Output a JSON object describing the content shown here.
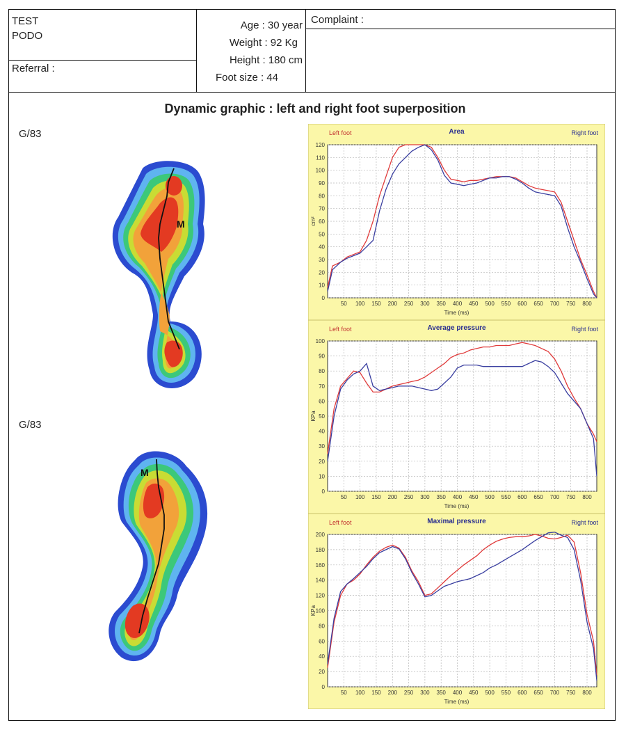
{
  "header": {
    "patient_line1": "TEST",
    "patient_line2": "PODO",
    "referral_label": "Referral :",
    "age": "Age : 30 year",
    "weight": "Weight : 92 Kg",
    "height": "Height : 180 cm",
    "foot_size": "Foot size : 44",
    "complaint_label": "Complaint :"
  },
  "main": {
    "title": "Dynamic graphic : left and right foot superposition",
    "foot_top_label": "G/83",
    "foot_bottom_label": "G/83",
    "foot_marker": "M"
  },
  "colors": {
    "left_foot": "#e03b3b",
    "right_foot": "#3a3fa0",
    "panel_bg": "#fbf7a8",
    "plot_bg": "#ffffff",
    "grid": "#b8b8b8"
  },
  "chart_data": [
    {
      "type": "line",
      "title": "Area",
      "left_label": "Left foot",
      "right_label": "Right foot",
      "xlabel": "Time (ms)",
      "ylabel": "cm²",
      "xlim": [
        0,
        830
      ],
      "ylim": [
        0,
        120
      ],
      "xticks": [
        50,
        100,
        150,
        200,
        250,
        300,
        350,
        400,
        450,
        500,
        550,
        600,
        650,
        700,
        750,
        800
      ],
      "yticks": [
        0,
        10,
        20,
        30,
        40,
        50,
        60,
        70,
        80,
        90,
        100,
        110,
        120
      ],
      "series": [
        {
          "color_key": "left_foot",
          "x": [
            0,
            15,
            40,
            60,
            80,
            100,
            120,
            140,
            160,
            180,
            200,
            220,
            240,
            260,
            280,
            300,
            320,
            340,
            360,
            380,
            400,
            420,
            440,
            460,
            480,
            500,
            520,
            540,
            560,
            580,
            600,
            620,
            640,
            660,
            680,
            700,
            720,
            740,
            760,
            780,
            800,
            820,
            830
          ],
          "y": [
            8,
            25,
            28,
            32,
            34,
            36,
            45,
            60,
            80,
            95,
            110,
            118,
            120,
            120,
            120,
            120,
            118,
            110,
            100,
            93,
            92,
            91,
            92,
            92,
            93,
            94,
            95,
            95,
            95,
            94,
            91,
            88,
            86,
            85,
            84,
            83,
            75,
            60,
            45,
            30,
            18,
            5,
            0
          ]
        },
        {
          "color_key": "right_foot",
          "x": [
            0,
            15,
            40,
            60,
            80,
            100,
            120,
            140,
            160,
            180,
            200,
            220,
            240,
            260,
            280,
            300,
            320,
            340,
            360,
            380,
            400,
            420,
            440,
            460,
            480,
            500,
            520,
            540,
            560,
            580,
            600,
            620,
            640,
            660,
            680,
            700,
            720,
            740,
            760,
            780,
            800,
            820,
            830
          ],
          "y": [
            5,
            22,
            28,
            31,
            33,
            35,
            40,
            45,
            68,
            85,
            97,
            105,
            110,
            115,
            118,
            120,
            116,
            108,
            96,
            90,
            89,
            88,
            89,
            90,
            92,
            94,
            94,
            95,
            95,
            93,
            90,
            86,
            83,
            82,
            81,
            80,
            72,
            55,
            40,
            28,
            15,
            3,
            0
          ]
        }
      ]
    },
    {
      "type": "line",
      "title": "Average pressure",
      "left_label": "Left foot",
      "right_label": "Right foot",
      "xlabel": "Time (ms)",
      "ylabel": "KPa",
      "xlim": [
        0,
        830
      ],
      "ylim": [
        0,
        100
      ],
      "xticks": [
        50,
        100,
        150,
        200,
        250,
        300,
        350,
        400,
        450,
        500,
        550,
        600,
        650,
        700,
        750,
        800
      ],
      "yticks": [
        0,
        10,
        20,
        30,
        40,
        50,
        60,
        70,
        80,
        90,
        100
      ],
      "series": [
        {
          "color_key": "left_foot",
          "x": [
            0,
            20,
            40,
            60,
            80,
            100,
            120,
            140,
            160,
            180,
            200,
            220,
            240,
            260,
            280,
            300,
            320,
            340,
            360,
            380,
            400,
            420,
            440,
            460,
            480,
            500,
            520,
            540,
            560,
            580,
            600,
            620,
            640,
            660,
            680,
            700,
            720,
            740,
            760,
            780,
            800,
            820,
            830
          ],
          "y": [
            25,
            55,
            70,
            75,
            80,
            79,
            72,
            66,
            66,
            68,
            70,
            71,
            72,
            73,
            74,
            76,
            79,
            82,
            85,
            89,
            91,
            92,
            94,
            95,
            96,
            96,
            97,
            97,
            97,
            98,
            99,
            98,
            97,
            95,
            93,
            88,
            80,
            70,
            62,
            55,
            45,
            38,
            33
          ]
        },
        {
          "color_key": "right_foot",
          "x": [
            0,
            20,
            40,
            60,
            80,
            100,
            120,
            140,
            160,
            180,
            200,
            220,
            240,
            260,
            280,
            300,
            320,
            340,
            360,
            380,
            400,
            420,
            440,
            460,
            480,
            500,
            520,
            540,
            560,
            580,
            600,
            620,
            640,
            660,
            680,
            700,
            720,
            740,
            760,
            780,
            800,
            820,
            830
          ],
          "y": [
            20,
            50,
            68,
            74,
            78,
            80,
            85,
            70,
            67,
            68,
            69,
            70,
            70,
            70,
            69,
            68,
            67,
            68,
            72,
            76,
            82,
            84,
            84,
            84,
            83,
            83,
            83,
            83,
            83,
            83,
            83,
            85,
            87,
            86,
            83,
            79,
            72,
            65,
            60,
            55,
            45,
            35,
            10
          ]
        }
      ]
    },
    {
      "type": "line",
      "title": "Maximal pressure",
      "left_label": "Left foot",
      "right_label": "Right foot",
      "xlabel": "Time (ms)",
      "ylabel": "KPa",
      "xlim": [
        0,
        830
      ],
      "ylim": [
        0,
        200
      ],
      "xticks": [
        50,
        100,
        150,
        200,
        250,
        300,
        350,
        400,
        450,
        500,
        550,
        600,
        650,
        700,
        750,
        800
      ],
      "yticks": [
        0,
        20,
        40,
        60,
        80,
        100,
        120,
        140,
        160,
        180,
        200
      ],
      "series": [
        {
          "color_key": "left_foot",
          "x": [
            0,
            20,
            40,
            60,
            80,
            100,
            120,
            140,
            160,
            180,
            200,
            220,
            240,
            260,
            280,
            300,
            320,
            340,
            360,
            380,
            400,
            420,
            440,
            460,
            480,
            500,
            520,
            540,
            560,
            580,
            600,
            620,
            640,
            660,
            680,
            700,
            720,
            740,
            760,
            780,
            800,
            820,
            830
          ],
          "y": [
            25,
            85,
            120,
            135,
            140,
            148,
            160,
            170,
            178,
            183,
            186,
            182,
            170,
            152,
            138,
            120,
            122,
            130,
            138,
            146,
            153,
            160,
            166,
            172,
            180,
            186,
            191,
            194,
            196,
            197,
            197,
            198,
            200,
            198,
            195,
            194,
            196,
            199,
            190,
            150,
            95,
            60,
            15
          ]
        },
        {
          "color_key": "right_foot",
          "x": [
            0,
            20,
            40,
            60,
            80,
            100,
            120,
            140,
            160,
            180,
            200,
            220,
            240,
            260,
            280,
            300,
            320,
            340,
            360,
            380,
            400,
            420,
            440,
            460,
            480,
            500,
            520,
            540,
            560,
            580,
            600,
            620,
            640,
            660,
            680,
            700,
            720,
            740,
            760,
            780,
            800,
            820,
            830
          ],
          "y": [
            30,
            90,
            125,
            135,
            142,
            150,
            158,
            168,
            176,
            180,
            184,
            181,
            168,
            150,
            135,
            118,
            120,
            126,
            132,
            135,
            138,
            140,
            142,
            146,
            150,
            156,
            160,
            165,
            170,
            175,
            180,
            186,
            192,
            197,
            202,
            203,
            199,
            196,
            180,
            140,
            85,
            50,
            8
          ]
        }
      ]
    }
  ]
}
